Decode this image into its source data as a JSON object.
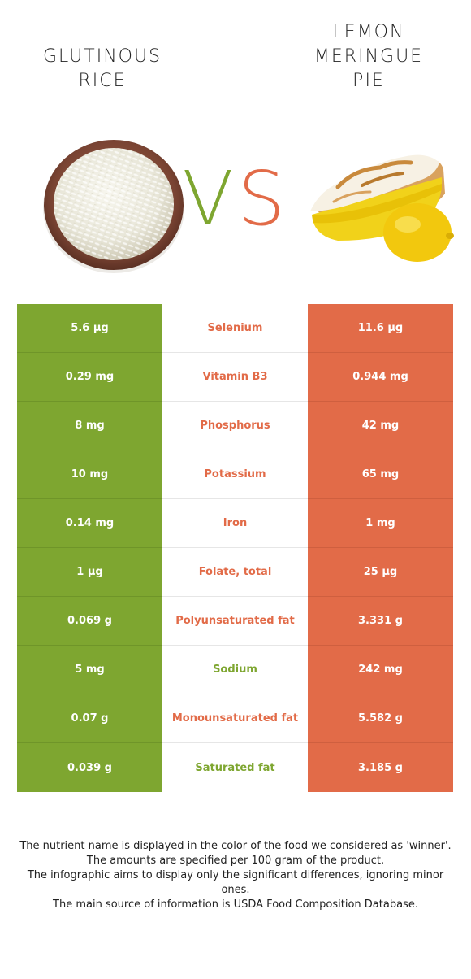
{
  "food_left": {
    "name": "GLUTINOUS RICE",
    "color": "#7ea630"
  },
  "food_right": {
    "name": "LEMON MERINGUE PIE",
    "color": "#e26b48"
  },
  "vs": {
    "v": "V",
    "s": "S"
  },
  "rows": [
    {
      "left": "5.6 µg",
      "nutrient": "Selenium",
      "right": "11.6 µg",
      "winner": "right"
    },
    {
      "left": "0.29 mg",
      "nutrient": "Vitamin B3",
      "right": "0.944 mg",
      "winner": "right"
    },
    {
      "left": "8 mg",
      "nutrient": "Phosphorus",
      "right": "42 mg",
      "winner": "right"
    },
    {
      "left": "10 mg",
      "nutrient": "Potassium",
      "right": "65 mg",
      "winner": "right"
    },
    {
      "left": "0.14 mg",
      "nutrient": "Iron",
      "right": "1 mg",
      "winner": "right"
    },
    {
      "left": "1 µg",
      "nutrient": "Folate, total",
      "right": "25 µg",
      "winner": "right"
    },
    {
      "left": "0.069 g",
      "nutrient": "Polyunsaturated fat",
      "right": "3.331 g",
      "winner": "right"
    },
    {
      "left": "5 mg",
      "nutrient": "Sodium",
      "right": "242 mg",
      "winner": "left"
    },
    {
      "left": "0.07 g",
      "nutrient": "Monounsaturated fat",
      "right": "5.582 g",
      "winner": "right"
    },
    {
      "left": "0.039 g",
      "nutrient": "Saturated fat",
      "right": "3.185 g",
      "winner": "left"
    }
  ],
  "footnote": [
    "The nutrient name is displayed in the color of the food we considered as 'winner'.",
    "The amounts are specified per 100 gram of the product.",
    "The infographic aims to display only the significant differences, ignoring minor ones.",
    "The main source of information is USDA Food Composition Database."
  ]
}
